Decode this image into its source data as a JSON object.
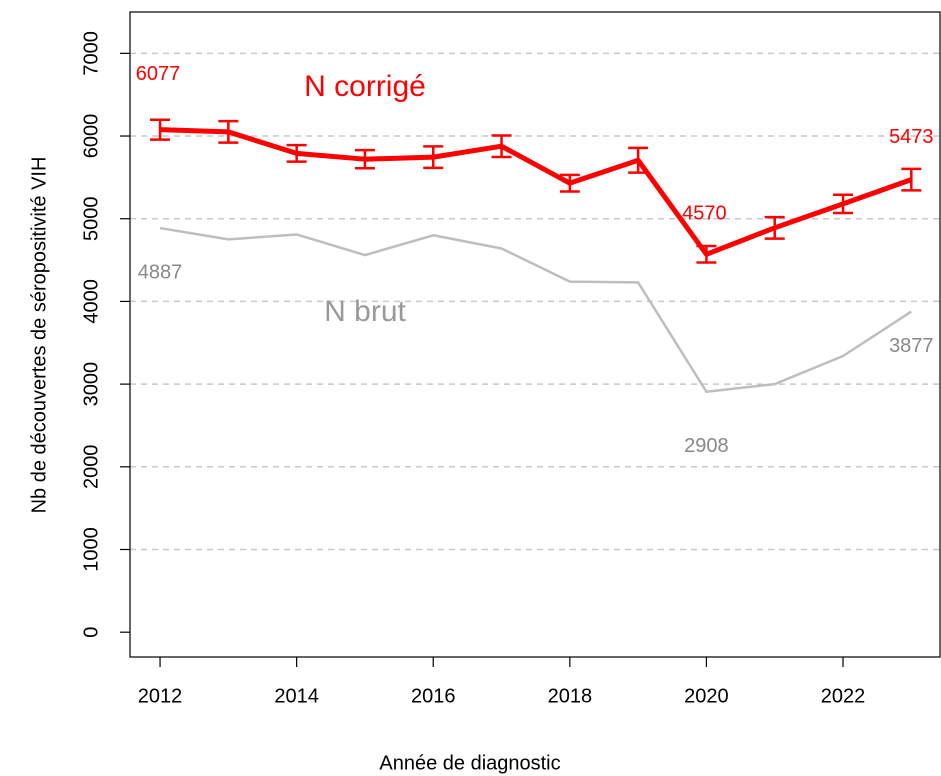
{
  "chart_data": {
    "type": "line",
    "xlabel": "Année de diagnostic",
    "ylabel": "Nb de découvertes de séropositivité VIH",
    "x": [
      2012,
      2013,
      2014,
      2015,
      2016,
      2017,
      2018,
      2019,
      2020,
      2021,
      2022,
      2023
    ],
    "series": [
      {
        "name": "N corrigé",
        "color": "#ff0000",
        "values": [
          6077,
          6050,
          5790,
          5720,
          5745,
          5877,
          5430,
          5707,
          4570,
          4890,
          5180,
          5473
        ],
        "errors": [
          120,
          130,
          100,
          110,
          130,
          130,
          100,
          150,
          100,
          130,
          110,
          130
        ],
        "value_labels": [
          "6077",
          null,
          null,
          null,
          null,
          null,
          null,
          null,
          "4570",
          null,
          null,
          "5473"
        ]
      },
      {
        "name": "N brut",
        "color": "#bebebe",
        "values": [
          4887,
          4750,
          4810,
          4560,
          4800,
          4640,
          4240,
          4230,
          2908,
          3000,
          3340,
          3877
        ],
        "value_labels": [
          "4887",
          null,
          null,
          null,
          null,
          null,
          null,
          null,
          "2908",
          null,
          null,
          "3877"
        ]
      }
    ],
    "xlim": [
      2011.56,
      2023.42
    ],
    "xticks": [
      2012,
      2014,
      2016,
      2018,
      2020,
      2022
    ],
    "ylim": [
      -300,
      7500
    ],
    "yticks": [
      0,
      1000,
      2000,
      3000,
      4000,
      5000,
      6000,
      7000
    ],
    "grid": true
  }
}
